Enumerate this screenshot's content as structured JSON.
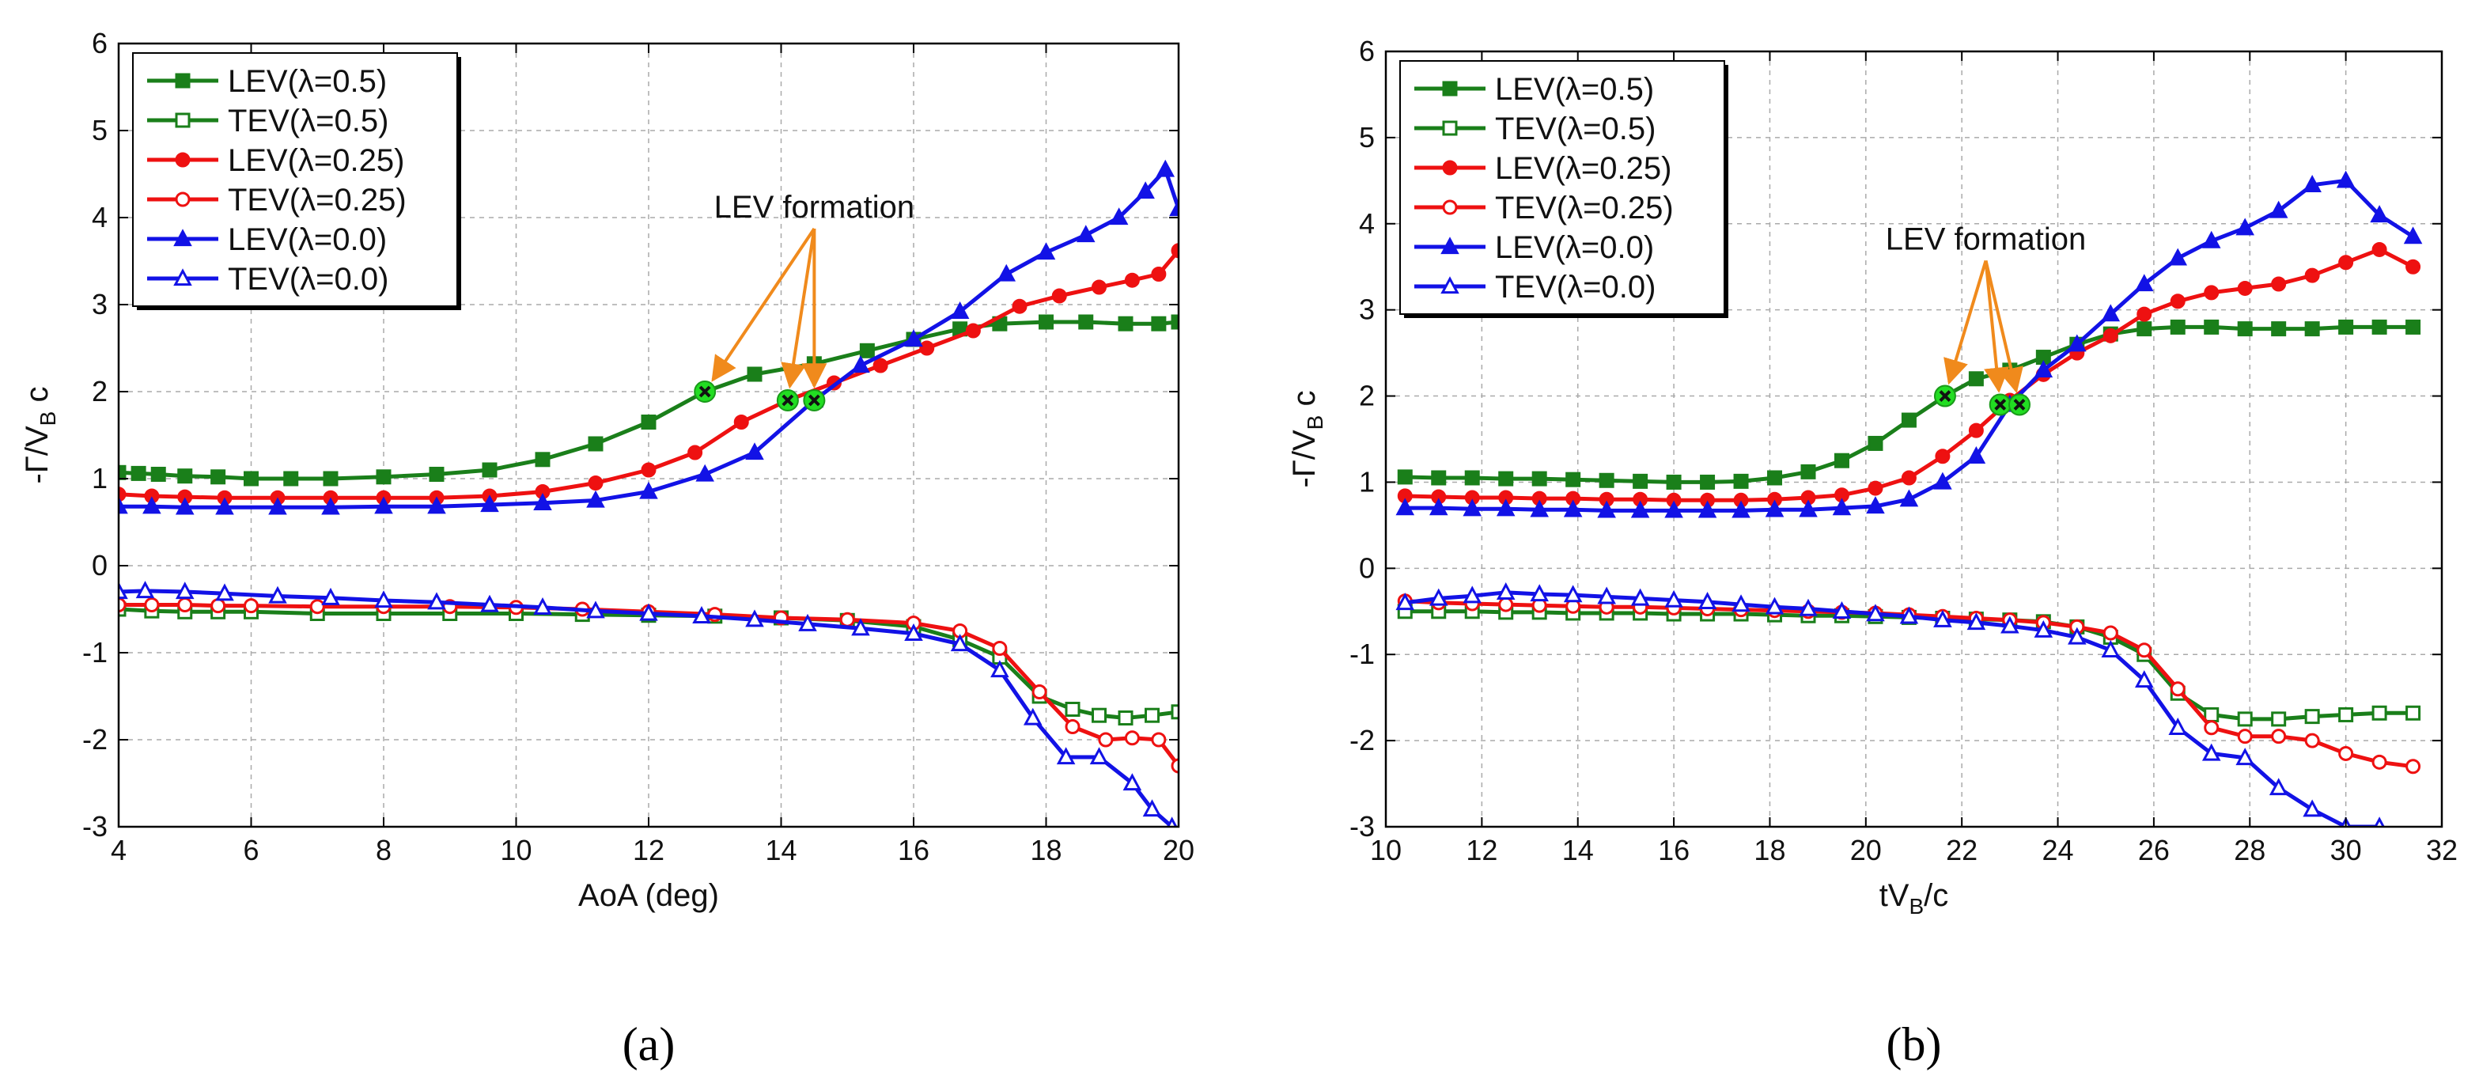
{
  "chart_data": [
    {
      "type": "line",
      "panel_label": "(a)",
      "xlabel": "AoA (deg)",
      "ylabel": "-Γ/V_B c",
      "xlim": [
        4,
        20
      ],
      "ylim": [
        -3,
        6
      ],
      "xticks": [
        4,
        6,
        8,
        10,
        12,
        14,
        16,
        18,
        20
      ],
      "yticks": [
        -3,
        -2,
        -1,
        0,
        1,
        2,
        3,
        4,
        5,
        6
      ],
      "grid": true,
      "legend_position": "top-left",
      "annotation": {
        "text": "LEV formation",
        "text_at": [
          14.5,
          4.0
        ],
        "targets": [
          [
            12.85,
            2.0
          ],
          [
            14.1,
            1.9
          ],
          [
            14.5,
            1.9
          ]
        ]
      },
      "series": [
        {
          "name": "LEV(λ=0.5)",
          "color": "#1a7f1a",
          "marker": "square",
          "filled": true,
          "x": [
            4,
            4.3,
            4.6,
            5,
            5.5,
            6,
            6.6,
            7.2,
            8,
            8.8,
            9.6,
            10.4,
            11.2,
            12,
            12.85,
            13.6,
            14.5,
            15.3,
            16,
            16.7,
            17.3,
            18,
            18.6,
            19.2,
            19.7,
            20
          ],
          "y": [
            1.07,
            1.06,
            1.05,
            1.03,
            1.02,
            1.0,
            1.0,
            1.0,
            1.02,
            1.05,
            1.1,
            1.22,
            1.4,
            1.65,
            2.0,
            2.2,
            2.32,
            2.47,
            2.6,
            2.72,
            2.78,
            2.8,
            2.8,
            2.78,
            2.78,
            2.8
          ]
        },
        {
          "name": "TEV(λ=0.5)",
          "color": "#1a7f1a",
          "marker": "square",
          "filled": false,
          "x": [
            4,
            4.5,
            5,
            5.5,
            6,
            7,
            8,
            9,
            10,
            11,
            12,
            13,
            14,
            15,
            16,
            16.7,
            17.3,
            17.9,
            18.4,
            18.8,
            19.2,
            19.6,
            20
          ],
          "y": [
            -0.5,
            -0.52,
            -0.53,
            -0.53,
            -0.53,
            -0.55,
            -0.55,
            -0.55,
            -0.55,
            -0.56,
            -0.57,
            -0.58,
            -0.6,
            -0.63,
            -0.7,
            -0.85,
            -1.05,
            -1.5,
            -1.65,
            -1.72,
            -1.75,
            -1.72,
            -1.68
          ]
        },
        {
          "name": "LEV(λ=0.25)",
          "color": "#ee1111",
          "marker": "circle",
          "filled": true,
          "x": [
            4,
            4.5,
            5,
            5.6,
            6.4,
            7.2,
            8,
            8.8,
            9.6,
            10.4,
            11.2,
            12,
            12.7,
            13.4,
            14.1,
            14.8,
            15.5,
            16.2,
            16.9,
            17.6,
            18.2,
            18.8,
            19.3,
            19.7,
            20
          ],
          "y": [
            0.82,
            0.8,
            0.79,
            0.78,
            0.78,
            0.78,
            0.78,
            0.78,
            0.8,
            0.85,
            0.95,
            1.1,
            1.3,
            1.65,
            1.9,
            2.1,
            2.3,
            2.5,
            2.7,
            2.98,
            3.1,
            3.2,
            3.28,
            3.35,
            3.62
          ]
        },
        {
          "name": "TEV(λ=0.25)",
          "color": "#ee1111",
          "marker": "circle",
          "filled": false,
          "x": [
            4,
            4.5,
            5,
            5.5,
            6,
            7,
            8,
            9,
            10,
            11,
            12,
            13,
            14,
            15,
            16,
            16.7,
            17.3,
            17.9,
            18.4,
            18.9,
            19.3,
            19.7,
            20
          ],
          "y": [
            -0.45,
            -0.45,
            -0.45,
            -0.46,
            -0.46,
            -0.47,
            -0.47,
            -0.47,
            -0.48,
            -0.5,
            -0.53,
            -0.56,
            -0.6,
            -0.62,
            -0.66,
            -0.75,
            -0.95,
            -1.45,
            -1.85,
            -2.0,
            -1.98,
            -2.0,
            -2.3
          ]
        },
        {
          "name": "LEV(λ=0.0)",
          "color": "#1212e6",
          "marker": "triangle",
          "filled": true,
          "x": [
            4,
            4.5,
            5,
            5.6,
            6.4,
            7.2,
            8,
            8.8,
            9.6,
            10.4,
            11.2,
            12,
            12.85,
            13.6,
            14.5,
            15.2,
            16,
            16.7,
            17.4,
            18,
            18.6,
            19.1,
            19.5,
            19.8,
            20
          ],
          "y": [
            0.68,
            0.68,
            0.67,
            0.67,
            0.67,
            0.67,
            0.68,
            0.68,
            0.7,
            0.72,
            0.75,
            0.85,
            1.05,
            1.3,
            1.9,
            2.3,
            2.6,
            2.92,
            3.35,
            3.6,
            3.8,
            4.0,
            4.3,
            4.55,
            4.1
          ]
        },
        {
          "name": "TEV(λ=0.0)",
          "color": "#1212e6",
          "marker": "triangle",
          "filled": false,
          "x": [
            4,
            4.4,
            5,
            5.6,
            6.4,
            7.2,
            8,
            8.8,
            9.6,
            10.4,
            11.2,
            12,
            12.8,
            13.6,
            14.4,
            15.2,
            16,
            16.7,
            17.3,
            17.8,
            18.3,
            18.8,
            19.3,
            19.6,
            19.9
          ],
          "y": [
            -0.3,
            -0.29,
            -0.3,
            -0.32,
            -0.35,
            -0.37,
            -0.4,
            -0.42,
            -0.45,
            -0.48,
            -0.52,
            -0.55,
            -0.58,
            -0.62,
            -0.67,
            -0.72,
            -0.78,
            -0.9,
            -1.2,
            -1.75,
            -2.2,
            -2.2,
            -2.5,
            -2.8,
            -3.0
          ]
        }
      ]
    },
    {
      "type": "line",
      "panel_label": "(b)",
      "xlabel": "tV_B/c",
      "ylabel": "-Γ/V_B c",
      "xlim": [
        10,
        32
      ],
      "ylim": [
        -3,
        6
      ],
      "xticks": [
        10,
        12,
        14,
        16,
        18,
        20,
        22,
        24,
        26,
        28,
        30,
        32
      ],
      "yticks": [
        -3,
        -2,
        -1,
        0,
        1,
        2,
        3,
        4,
        5,
        6
      ],
      "grid": true,
      "legend_position": "top-left",
      "annotation": {
        "text": "LEV formation",
        "text_at": [
          22.5,
          3.7
        ],
        "targets": [
          [
            21.65,
            2.0
          ],
          [
            22.8,
            1.9
          ],
          [
            23.2,
            1.9
          ]
        ]
      },
      "series": [
        {
          "name": "LEV(λ=0.5)",
          "color": "#1a7f1a",
          "marker": "square",
          "filled": true,
          "x": [
            10.4,
            11.1,
            11.8,
            12.5,
            13.2,
            13.9,
            14.6,
            15.3,
            16,
            16.7,
            17.4,
            18.1,
            18.8,
            19.5,
            20.2,
            20.9,
            21.65,
            22.3,
            23,
            23.7,
            24.4,
            25.1,
            25.8,
            26.5,
            27.2,
            27.9,
            28.6,
            29.3,
            30,
            30.7,
            31.4
          ],
          "y": [
            1.06,
            1.05,
            1.05,
            1.04,
            1.04,
            1.03,
            1.02,
            1.01,
            1.0,
            1.0,
            1.01,
            1.05,
            1.12,
            1.25,
            1.45,
            1.72,
            2.0,
            2.2,
            2.3,
            2.45,
            2.6,
            2.72,
            2.78,
            2.8,
            2.8,
            2.78,
            2.78,
            2.78,
            2.8,
            2.8,
            2.8
          ]
        },
        {
          "name": "TEV(λ=0.5)",
          "color": "#1a7f1a",
          "marker": "square",
          "filled": false,
          "x": [
            10.4,
            11.1,
            11.8,
            12.5,
            13.2,
            13.9,
            14.6,
            15.3,
            16,
            16.7,
            17.4,
            18.1,
            18.8,
            19.5,
            20.2,
            20.9,
            21.6,
            22.3,
            23,
            23.7,
            24.4,
            25.1,
            25.8,
            26.5,
            27.2,
            27.9,
            28.6,
            29.3,
            30,
            30.7,
            31.4
          ],
          "y": [
            -0.5,
            -0.5,
            -0.5,
            -0.51,
            -0.51,
            -0.52,
            -0.52,
            -0.52,
            -0.53,
            -0.53,
            -0.53,
            -0.54,
            -0.55,
            -0.55,
            -0.56,
            -0.57,
            -0.58,
            -0.59,
            -0.6,
            -0.62,
            -0.68,
            -0.8,
            -1.0,
            -1.45,
            -1.7,
            -1.75,
            -1.75,
            -1.72,
            -1.7,
            -1.68,
            -1.68
          ]
        },
        {
          "name": "LEV(λ=0.25)",
          "color": "#ee1111",
          "marker": "circle",
          "filled": true,
          "x": [
            10.4,
            11.1,
            11.8,
            12.5,
            13.2,
            13.9,
            14.6,
            15.3,
            16,
            16.7,
            17.4,
            18.1,
            18.8,
            19.5,
            20.2,
            20.9,
            21.6,
            22.3,
            23,
            23.7,
            24.4,
            25.1,
            25.8,
            26.5,
            27.2,
            27.9,
            28.6,
            29.3,
            30,
            30.7,
            31.4
          ],
          "y": [
            0.84,
            0.83,
            0.82,
            0.82,
            0.81,
            0.81,
            0.8,
            0.8,
            0.79,
            0.79,
            0.79,
            0.8,
            0.82,
            0.85,
            0.93,
            1.05,
            1.3,
            1.6,
            1.95,
            2.25,
            2.5,
            2.7,
            2.95,
            3.1,
            3.2,
            3.25,
            3.3,
            3.4,
            3.55,
            3.7,
            3.5
          ]
        },
        {
          "name": "TEV(λ=0.25)",
          "color": "#ee1111",
          "marker": "circle",
          "filled": false,
          "x": [
            10.4,
            11.1,
            11.8,
            12.5,
            13.2,
            13.9,
            14.6,
            15.3,
            16,
            16.7,
            17.4,
            18.1,
            18.8,
            19.5,
            20.2,
            20.9,
            21.6,
            22.3,
            23,
            23.7,
            24.4,
            25.1,
            25.8,
            26.5,
            27.2,
            27.9,
            28.6,
            29.3,
            30,
            30.7,
            31.4
          ],
          "y": [
            -0.38,
            -0.4,
            -0.41,
            -0.42,
            -0.43,
            -0.44,
            -0.45,
            -0.45,
            -0.46,
            -0.47,
            -0.48,
            -0.49,
            -0.5,
            -0.51,
            -0.52,
            -0.54,
            -0.56,
            -0.58,
            -0.6,
            -0.63,
            -0.68,
            -0.75,
            -0.95,
            -1.4,
            -1.85,
            -1.95,
            -1.95,
            -2.0,
            -2.15,
            -2.25,
            -2.3
          ]
        },
        {
          "name": "LEV(λ=0.0)",
          "color": "#1212e6",
          "marker": "triangle",
          "filled": true,
          "x": [
            10.4,
            11.1,
            11.8,
            12.5,
            13.2,
            13.9,
            14.6,
            15.3,
            16,
            16.7,
            17.4,
            18.1,
            18.8,
            19.5,
            20.2,
            20.9,
            21.6,
            22.3,
            23,
            23.7,
            24.4,
            25.1,
            25.8,
            26.5,
            27.2,
            27.9,
            28.6,
            29.3,
            30,
            30.7,
            31.4
          ],
          "y": [
            0.7,
            0.7,
            0.69,
            0.69,
            0.68,
            0.68,
            0.67,
            0.67,
            0.67,
            0.67,
            0.67,
            0.68,
            0.68,
            0.7,
            0.72,
            0.8,
            1.0,
            1.3,
            1.9,
            2.3,
            2.6,
            2.95,
            3.3,
            3.6,
            3.8,
            3.95,
            4.15,
            4.45,
            4.5,
            4.1,
            3.85
          ]
        },
        {
          "name": "TEV(λ=0.0)",
          "color": "#1212e6",
          "marker": "triangle",
          "filled": false,
          "x": [
            10.4,
            11.1,
            11.8,
            12.5,
            13.2,
            13.9,
            14.6,
            15.3,
            16,
            16.7,
            17.4,
            18.1,
            18.8,
            19.5,
            20.2,
            20.9,
            21.6,
            22.3,
            23,
            23.7,
            24.4,
            25.1,
            25.8,
            26.5,
            27.2,
            27.9,
            28.6,
            29.3,
            30,
            30.7
          ],
          "y": [
            -0.4,
            -0.35,
            -0.32,
            -0.28,
            -0.3,
            -0.31,
            -0.33,
            -0.35,
            -0.37,
            -0.39,
            -0.42,
            -0.45,
            -0.47,
            -0.5,
            -0.53,
            -0.56,
            -0.6,
            -0.63,
            -0.67,
            -0.72,
            -0.8,
            -0.95,
            -1.3,
            -1.85,
            -2.15,
            -2.2,
            -2.55,
            -2.8,
            -3.0,
            -3.0
          ]
        }
      ]
    }
  ]
}
